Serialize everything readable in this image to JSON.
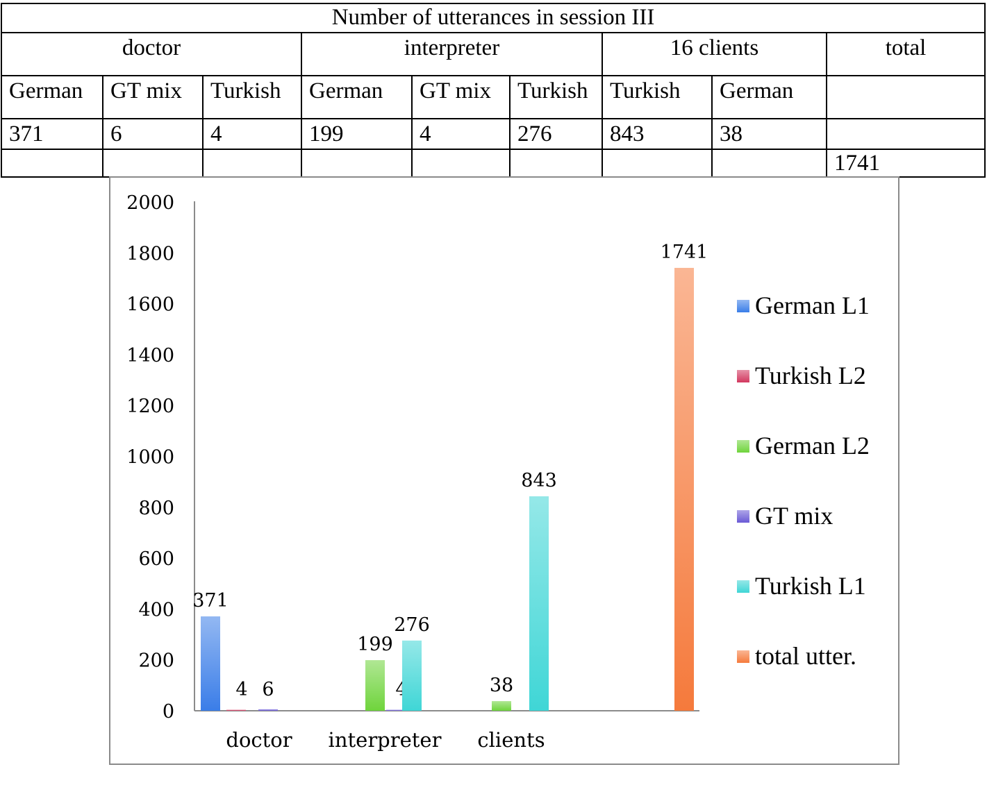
{
  "table": {
    "title": "Number of utterances in session III",
    "groups": [
      "doctor",
      "interpreter",
      "16 clients",
      "total"
    ],
    "languages": [
      "German",
      "GT mix",
      "Turkish",
      "German",
      "GT mix",
      "Turkish",
      "Turkish",
      "German",
      ""
    ],
    "values": [
      "371",
      "6",
      "4",
      "199",
      "4",
      "276",
      "843",
      "38",
      ""
    ],
    "total_row": [
      "",
      "",
      "",
      "",
      "",
      "",
      "",
      "",
      "1741"
    ]
  },
  "chart_data": {
    "type": "bar",
    "categories": [
      "doctor",
      "interpreter",
      "clients",
      ""
    ],
    "ylim": [
      0,
      2000
    ],
    "yticks": [
      0,
      200,
      400,
      600,
      800,
      1000,
      1200,
      1400,
      1600,
      1800,
      2000
    ],
    "grid": false,
    "legend_position": "right",
    "series": [
      {
        "name": "German L1",
        "values": [
          371,
          null,
          null,
          null
        ],
        "color": "#3a7de8"
      },
      {
        "name": "Turkish L2",
        "values": [
          4,
          null,
          null,
          null
        ],
        "color": "#d2385f"
      },
      {
        "name": "German L2",
        "values": [
          null,
          199,
          38,
          null
        ],
        "color": "#6fd43c"
      },
      {
        "name": "GT mix",
        "values": [
          6,
          4,
          null,
          null
        ],
        "color": "#6a5ad6"
      },
      {
        "name": "Turkish L1",
        "values": [
          null,
          276,
          843,
          null
        ],
        "color": "#3fd6d6"
      },
      {
        "name": "total utter.",
        "values": [
          null,
          null,
          null,
          1741
        ],
        "color": "#f57a3c"
      }
    ]
  }
}
